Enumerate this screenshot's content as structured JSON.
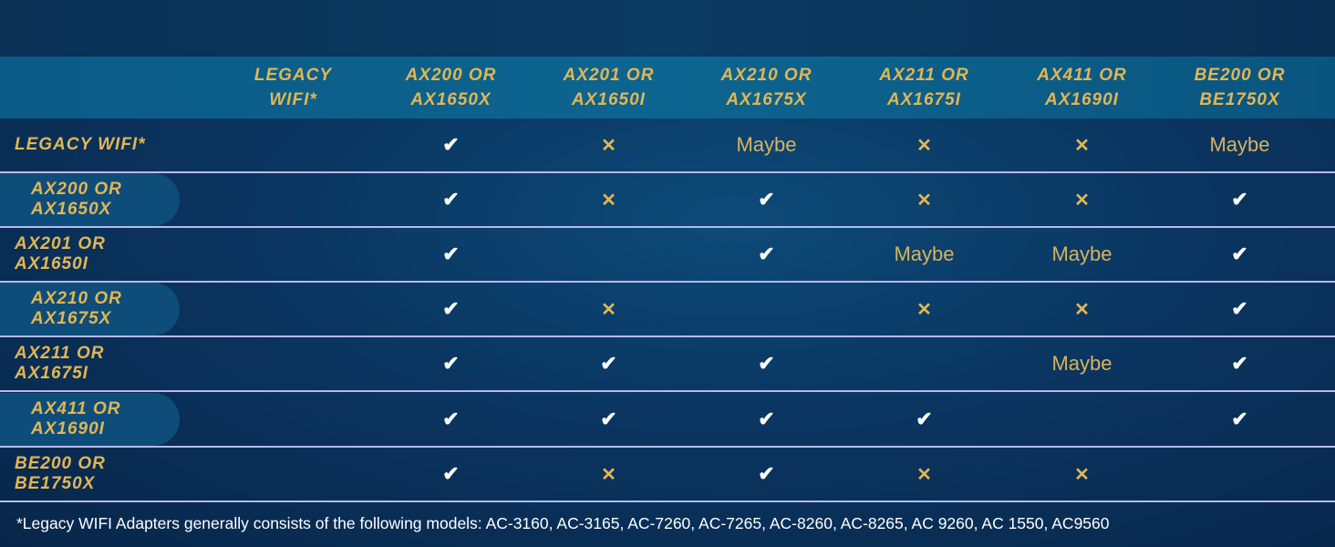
{
  "colors": {
    "accent": "#e2b653",
    "check": "#ffffff",
    "divider": "#b8b9ec"
  },
  "columns": [
    "LEGACY\nWIFI*",
    "AX200 OR\nAX1650X",
    "AX201 OR\nAX1650I",
    "AX210 OR\nAX1675X",
    "AX211 OR\nAX1675I",
    "AX411 OR\nAX1690I",
    "BE200 OR\nBE1750X"
  ],
  "symbols": {
    "check": "✔",
    "x": "✕"
  },
  "rows": [
    {
      "label": "LEGACY WIFI*",
      "highlight": false,
      "cells": [
        "",
        "check",
        "x",
        "Maybe",
        "x",
        "x",
        "Maybe"
      ]
    },
    {
      "label": "AX200 OR\nAX1650X",
      "highlight": true,
      "cells": [
        "",
        "check",
        "x",
        "check",
        "x",
        "x",
        "check"
      ]
    },
    {
      "label": "AX201 OR\nAX1650I",
      "highlight": false,
      "cells": [
        "",
        "check",
        "",
        "check",
        "Maybe",
        "Maybe",
        "check"
      ]
    },
    {
      "label": "AX210 OR\nAX1675X",
      "highlight": true,
      "cells": [
        "",
        "check",
        "x",
        "",
        "x",
        "x",
        "check"
      ]
    },
    {
      "label": "AX211 OR\nAX1675I",
      "highlight": false,
      "cells": [
        "",
        "check",
        "check",
        "check",
        "",
        "Maybe",
        "check"
      ]
    },
    {
      "label": "AX411 OR\nAX1690I",
      "highlight": true,
      "cells": [
        "",
        "check",
        "check",
        "check",
        "check",
        "",
        "check"
      ]
    },
    {
      "label": "BE200 OR\nBE1750X",
      "highlight": false,
      "cells": [
        "",
        "check",
        "x",
        "check",
        "x",
        "x",
        ""
      ]
    }
  ],
  "footnote": "*Legacy WIFI Adapters generally consists of the following models: AC-3160, AC-3165, AC-7260, AC-7265, AC-8260, AC-8265, AC 9260, AC 1550, AC9560"
}
